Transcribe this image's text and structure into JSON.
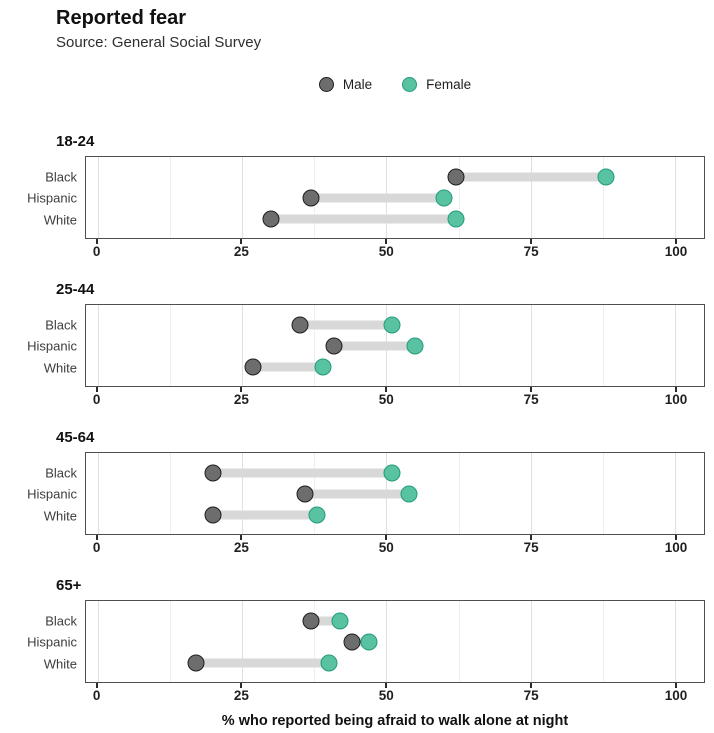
{
  "header": {
    "title": "Reported fear",
    "subtitle": "Source: General Social Survey"
  },
  "legend": [
    {
      "label": "Male",
      "fill": "#6d6d6d",
      "stroke": "#1f1f1f"
    },
    {
      "label": "Female",
      "fill": "#58c2a1",
      "stroke": "#239b7d"
    }
  ],
  "axis": {
    "xlabel": "% who reported being afraid to walk alone at night",
    "major_ticks": [
      0,
      25,
      50,
      75,
      100
    ],
    "minor_ticks": [
      12.5,
      37.5,
      62.5,
      87.5
    ],
    "xlim": [
      -2,
      105
    ]
  },
  "chart_data": {
    "type": "dumbbell",
    "title": "Reported fear",
    "subtitle": "Source: General Social Survey",
    "xlabel": "% who reported being afraid to walk alone at night",
    "legend_entries": [
      "Male",
      "Female"
    ],
    "legend_position": "top-center",
    "grid": true,
    "xlim": [
      0,
      100
    ],
    "categories": [
      "Black",
      "Hispanic",
      "White"
    ],
    "series_colors": {
      "male": "#6d6d6d",
      "female": "#58c2a1"
    },
    "connector_color": "#d8d8d8",
    "panels": [
      {
        "title": "18-24",
        "rows": [
          {
            "category": "Black",
            "male": 62,
            "female": 88
          },
          {
            "category": "Hispanic",
            "male": 37,
            "female": 60
          },
          {
            "category": "White",
            "male": 30,
            "female": 62
          }
        ]
      },
      {
        "title": "25-44",
        "rows": [
          {
            "category": "Black",
            "male": 35,
            "female": 51
          },
          {
            "category": "Hispanic",
            "male": 41,
            "female": 55
          },
          {
            "category": "White",
            "male": 27,
            "female": 39
          }
        ]
      },
      {
        "title": "45-64",
        "rows": [
          {
            "category": "Black",
            "male": 20,
            "female": 51
          },
          {
            "category": "Hispanic",
            "male": 36,
            "female": 54
          },
          {
            "category": "White",
            "male": 20,
            "female": 38
          }
        ]
      },
      {
        "title": "65+",
        "rows": [
          {
            "category": "Black",
            "male": 37,
            "female": 42
          },
          {
            "category": "Hispanic",
            "male": 44,
            "female": 47
          },
          {
            "category": "White",
            "male": 17,
            "female": 40
          }
        ]
      }
    ]
  }
}
